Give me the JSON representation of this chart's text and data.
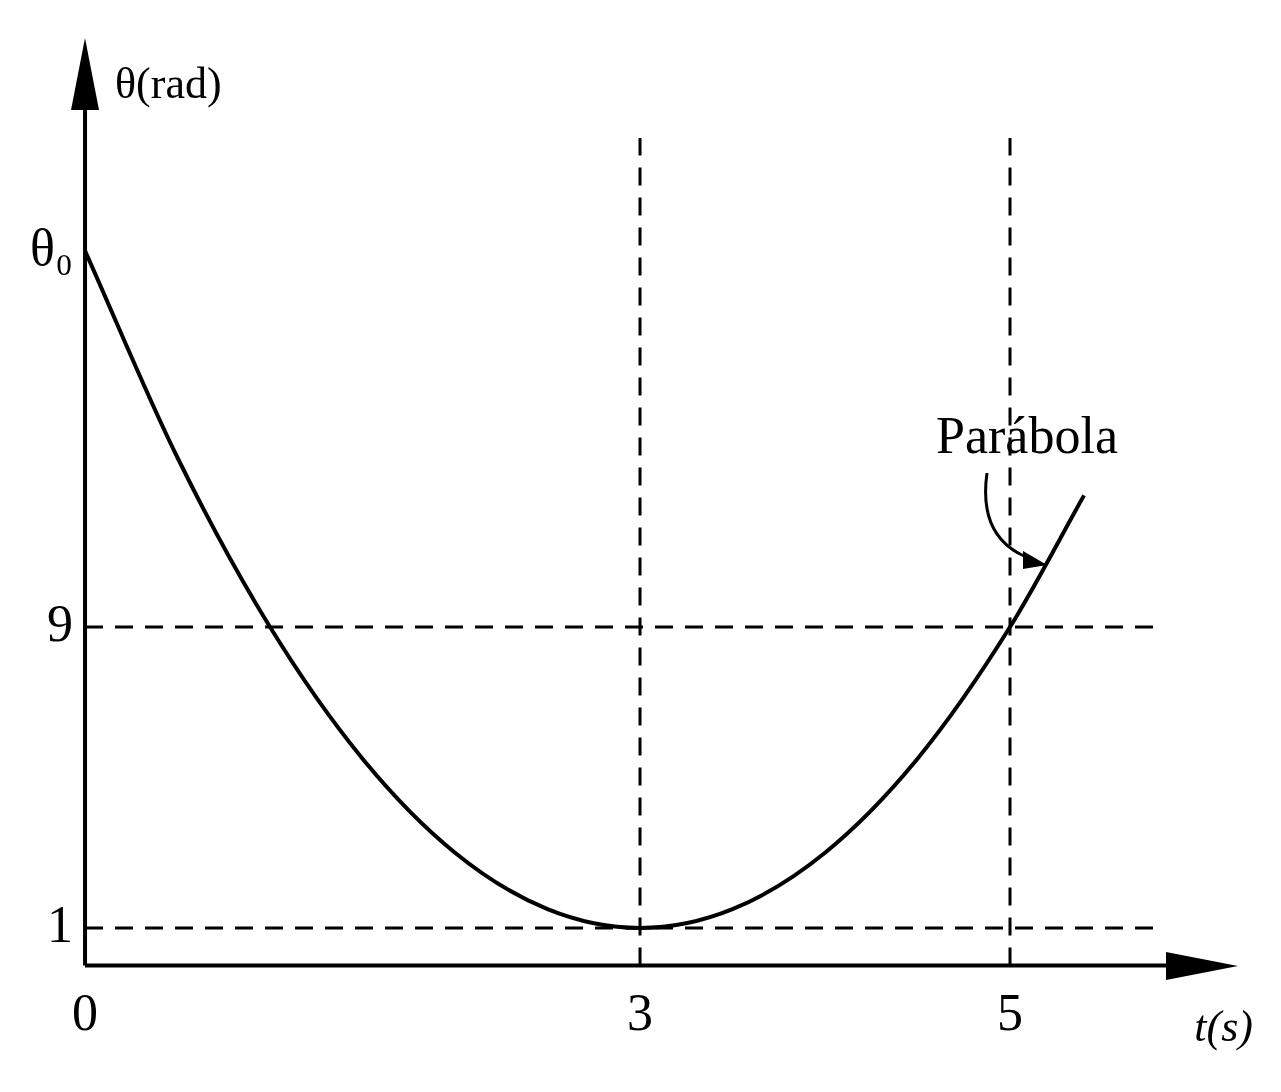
{
  "chart_data": {
    "type": "line",
    "xlabel": "t(s)",
    "ylabel": "θ(rad)",
    "x": [
      0,
      0.5,
      1,
      1.5,
      2,
      2.5,
      3,
      3.5,
      4,
      4.5,
      5,
      5.4
    ],
    "series": [
      {
        "color": "#000000",
        "values": [
          19,
          13.5,
          9,
          5.5,
          3,
          1.5,
          1,
          1.5,
          3,
          5.5,
          9,
          12.5
        ]
      }
    ],
    "xlim": [
      0,
      5.8
    ],
    "ylim": [
      0,
      22
    ],
    "xticks": [
      0,
      3,
      5
    ],
    "yticks": [
      1,
      9,
      {
        "value": 19,
        "label": "θ₀"
      }
    ],
    "ref_lines": [
      {
        "axis": "y",
        "value": 9,
        "color": "#000000",
        "line_style": "dashed"
      },
      {
        "axis": "y",
        "value": 1,
        "color": "#000000",
        "line_style": "dashed"
      },
      {
        "axis": "x",
        "value": 3,
        "color": "#000000",
        "line_style": "dashed"
      },
      {
        "axis": "x",
        "value": 5,
        "color": "#000000",
        "line_style": "dashed"
      }
    ],
    "annotations": [
      {
        "text": "Parábola",
        "x": 5.2,
        "y": 10.7
      }
    ]
  }
}
